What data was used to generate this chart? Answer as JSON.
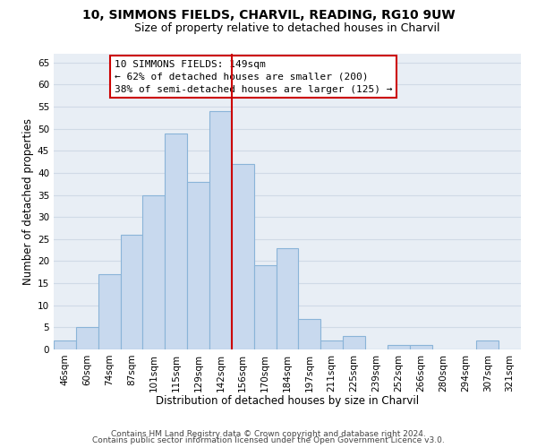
{
  "title": "10, SIMMONS FIELDS, CHARVIL, READING, RG10 9UW",
  "subtitle": "Size of property relative to detached houses in Charvil",
  "xlabel": "Distribution of detached houses by size in Charvil",
  "ylabel": "Number of detached properties",
  "bar_color": "#c8d9ee",
  "bar_edge_color": "#8ab4d8",
  "bin_labels": [
    "46sqm",
    "60sqm",
    "74sqm",
    "87sqm",
    "101sqm",
    "115sqm",
    "129sqm",
    "142sqm",
    "156sqm",
    "170sqm",
    "184sqm",
    "197sqm",
    "211sqm",
    "225sqm",
    "239sqm",
    "252sqm",
    "266sqm",
    "280sqm",
    "294sqm",
    "307sqm",
    "321sqm"
  ],
  "bar_heights": [
    2,
    5,
    17,
    26,
    35,
    49,
    38,
    54,
    42,
    19,
    23,
    7,
    2,
    3,
    0,
    1,
    1,
    0,
    0,
    2,
    0
  ],
  "ylim": [
    0,
    67
  ],
  "yticks": [
    0,
    5,
    10,
    15,
    20,
    25,
    30,
    35,
    40,
    45,
    50,
    55,
    60,
    65
  ],
  "vline_x_index": 7.5,
  "vline_color": "#cc0000",
  "annotation_title": "10 SIMMONS FIELDS: 149sqm",
  "annotation_line1": "← 62% of detached houses are smaller (200)",
  "annotation_line2": "38% of semi-detached houses are larger (125) →",
  "annotation_box_color": "#ffffff",
  "annotation_box_edge_color": "#cc0000",
  "footer1": "Contains HM Land Registry data © Crown copyright and database right 2024.",
  "footer2": "Contains public sector information licensed under the Open Government Licence v3.0.",
  "background_color": "#ffffff",
  "plot_bg_color": "#e8eef5",
  "grid_color": "#d0dae6",
  "title_fontsize": 10,
  "subtitle_fontsize": 9,
  "axis_label_fontsize": 8.5,
  "tick_fontsize": 7.5,
  "annotation_fontsize": 8,
  "footer_fontsize": 6.5
}
